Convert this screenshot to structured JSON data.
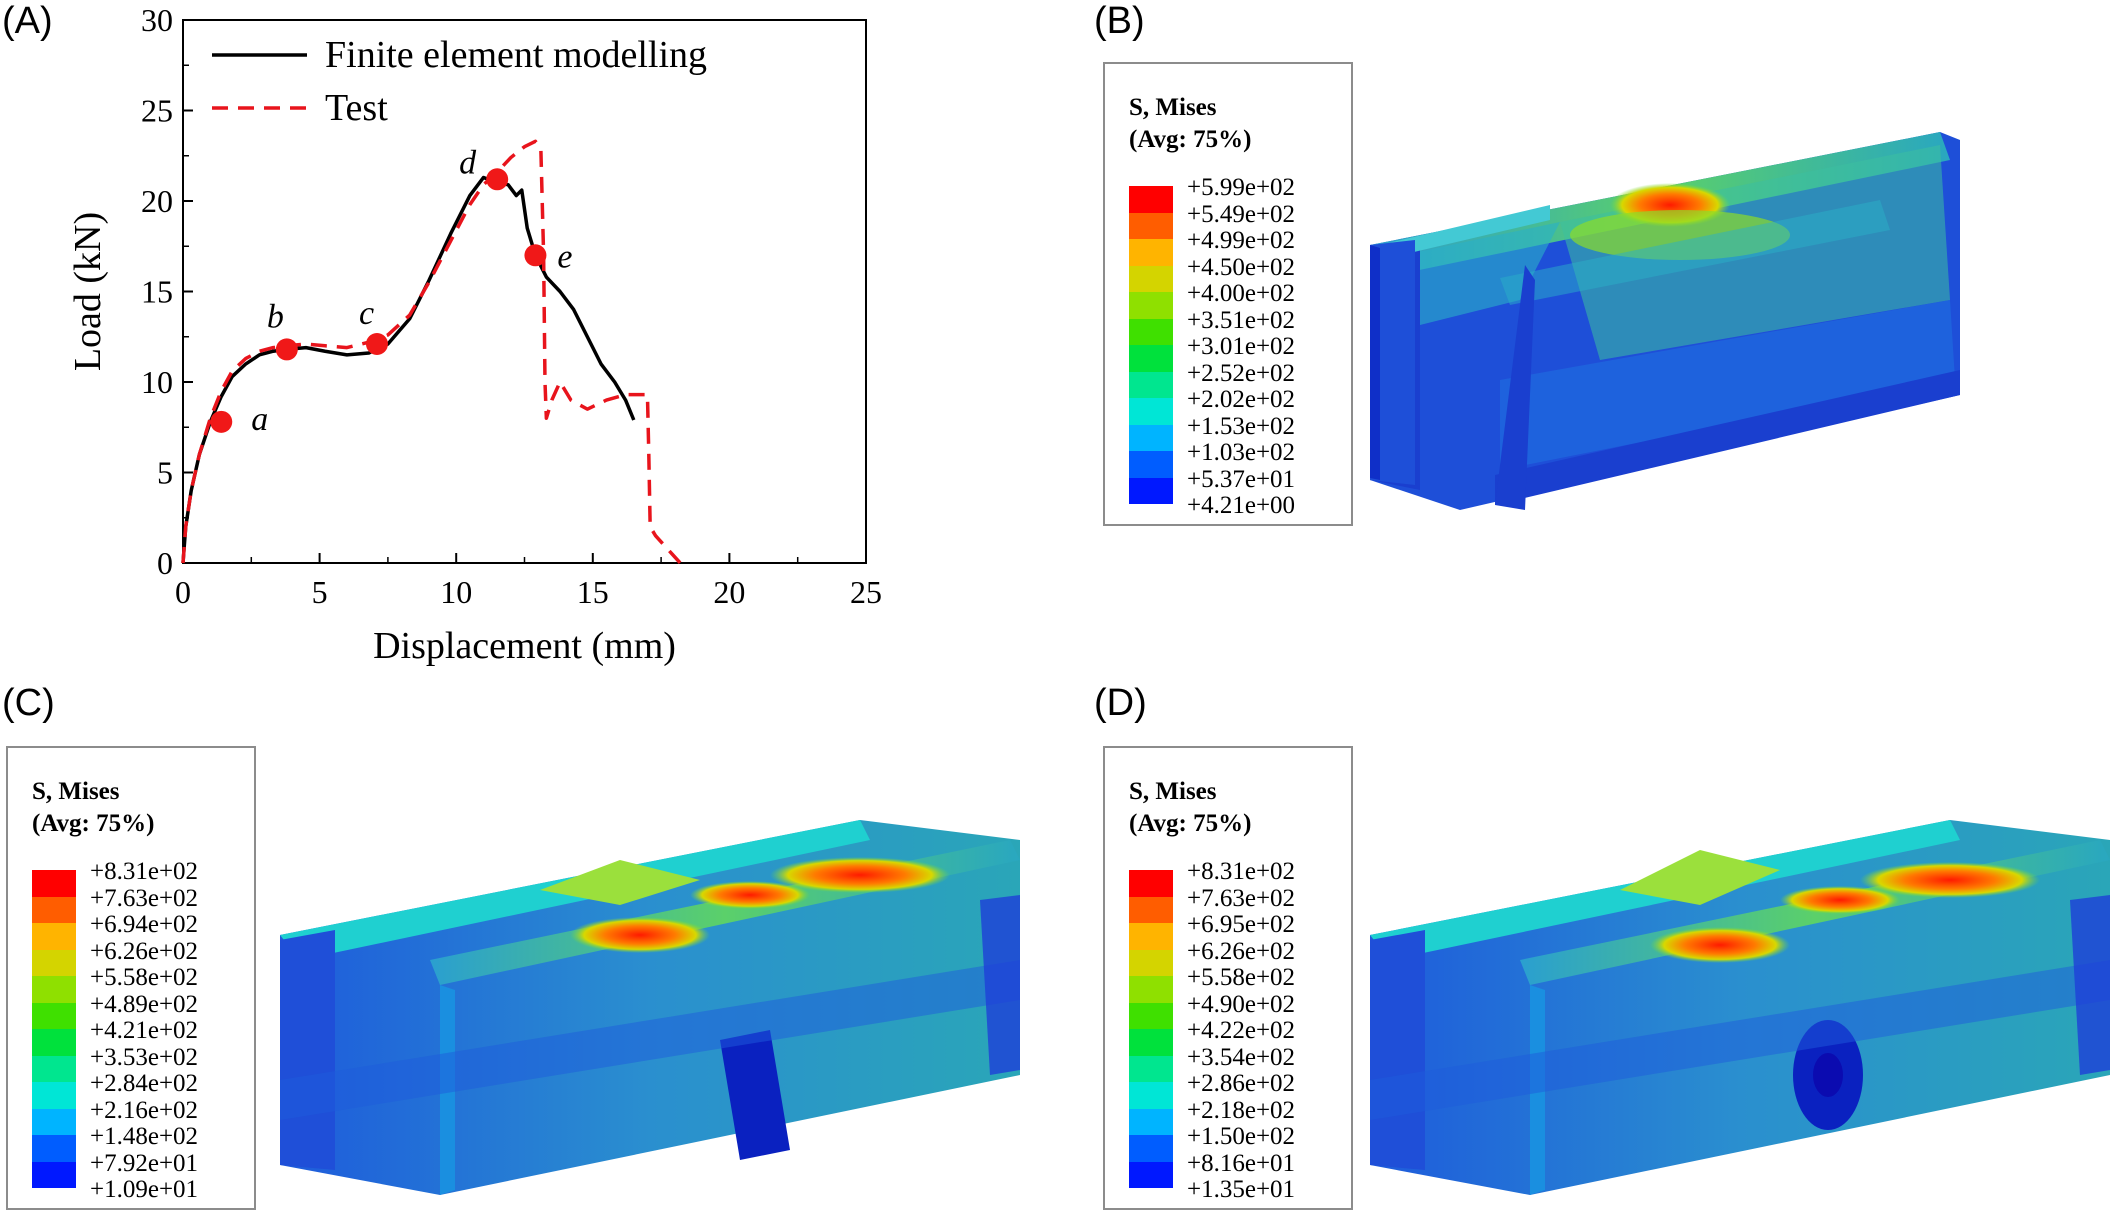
{
  "panels": {
    "A": {
      "label": "(A)"
    },
    "B": {
      "label": "(B)"
    },
    "C": {
      "label": "(C)"
    },
    "D": {
      "label": "(D)"
    }
  },
  "chart_data": {
    "type": "line",
    "xlabel": "Displacement (mm)",
    "ylabel": "Load (kN)",
    "xlim": [
      0,
      25
    ],
    "ylim": [
      0,
      30
    ],
    "xticks": [
      0,
      5,
      10,
      15,
      20,
      25
    ],
    "yticks": [
      0,
      5,
      10,
      15,
      20,
      25,
      30
    ],
    "legend_position": "top-left",
    "series": [
      {
        "name": "Finite element modelling",
        "color": "#000000",
        "style": "solid",
        "x": [
          0,
          0.1,
          0.3,
          0.6,
          1.0,
          1.4,
          1.8,
          2.3,
          2.8,
          3.3,
          3.8,
          4.5,
          5.2,
          6.0,
          6.8,
          7.5,
          8.3,
          9.0,
          9.8,
          10.5,
          11.0,
          11.5,
          11.9,
          12.2,
          12.4,
          12.6,
          12.9,
          13.3,
          13.8,
          14.3,
          14.8,
          15.3,
          15.8,
          16.2,
          16.5
        ],
        "y": [
          0,
          2.0,
          4.0,
          6.0,
          7.8,
          9.2,
          10.3,
          11.0,
          11.5,
          11.7,
          11.8,
          11.9,
          11.7,
          11.5,
          11.6,
          12.1,
          13.5,
          15.6,
          18.2,
          20.3,
          21.3,
          21.0,
          20.9,
          20.3,
          20.6,
          18.5,
          17.0,
          15.8,
          15.0,
          14.0,
          12.5,
          11.0,
          10.0,
          9.0,
          7.9
        ]
      },
      {
        "name": "Test",
        "color": "#e8141c",
        "style": "dashed",
        "x": [
          0,
          0.1,
          0.3,
          0.6,
          1.0,
          1.4,
          1.8,
          2.3,
          2.8,
          3.3,
          3.8,
          4.5,
          5.2,
          6.0,
          6.8,
          7.5,
          8.3,
          9.0,
          9.8,
          10.5,
          11.0,
          11.5,
          12.0,
          12.5,
          12.9,
          13.1,
          13.2,
          13.25,
          13.3,
          13.5,
          13.8,
          14.2,
          14.8,
          15.5,
          16.2,
          17.0,
          17.05,
          17.1,
          17.3,
          17.6,
          17.9,
          18.2
        ],
        "y": [
          0,
          2.0,
          4.0,
          6.0,
          8.0,
          9.5,
          10.6,
          11.3,
          11.7,
          11.9,
          12.0,
          12.1,
          12.0,
          11.9,
          12.2,
          12.6,
          13.7,
          15.5,
          17.8,
          19.8,
          20.9,
          21.6,
          22.4,
          23.0,
          23.3,
          22.8,
          17.0,
          10.0,
          8.0,
          9.0,
          10.0,
          9.0,
          8.5,
          9.0,
          9.3,
          9.3,
          6.0,
          2.0,
          1.5,
          1.0,
          0.5,
          0.0
        ]
      }
    ],
    "annotations": [
      {
        "label": "a",
        "x": 1.4,
        "y": 7.8
      },
      {
        "label": "b",
        "x": 3.8,
        "y": 11.8
      },
      {
        "label": "c",
        "x": 7.1,
        "y": 12.1
      },
      {
        "label": "d",
        "x": 11.5,
        "y": 21.2
      },
      {
        "label": "e",
        "x": 12.9,
        "y": 17.0
      }
    ]
  },
  "legends": {
    "B": {
      "title1": "S, Mises",
      "title2": "(Avg: 75%)",
      "values": [
        "+5.99e+02",
        "+5.49e+02",
        "+4.99e+02",
        "+4.50e+02",
        "+4.00e+02",
        "+3.51e+02",
        "+3.01e+02",
        "+2.52e+02",
        "+2.02e+02",
        "+1.53e+02",
        "+1.03e+02",
        "+5.37e+01",
        "+4.21e+00"
      ]
    },
    "C": {
      "title1": "S, Mises",
      "title2": "(Avg: 75%)",
      "values": [
        "+8.31e+02",
        "+7.63e+02",
        "+6.94e+02",
        "+6.26e+02",
        "+5.58e+02",
        "+4.89e+02",
        "+4.21e+02",
        "+3.53e+02",
        "+2.84e+02",
        "+2.16e+02",
        "+1.48e+02",
        "+7.92e+01",
        "+1.09e+01"
      ]
    },
    "D": {
      "title1": "S, Mises",
      "title2": "(Avg: 75%)",
      "values": [
        "+8.31e+02",
        "+7.63e+02",
        "+6.95e+02",
        "+6.26e+02",
        "+5.58e+02",
        "+4.90e+02",
        "+4.22e+02",
        "+3.54e+02",
        "+2.86e+02",
        "+2.18e+02",
        "+1.50e+02",
        "+8.16e+01",
        "+1.35e+01"
      ]
    }
  },
  "contour_colors": [
    "#ff0000",
    "#ff5d00",
    "#ffb400",
    "#d4d400",
    "#8fe000",
    "#3fe000",
    "#00e13c",
    "#00e68f",
    "#00e6d6",
    "#00b4ff",
    "#005dff",
    "#0018ff",
    "#0000ff"
  ]
}
